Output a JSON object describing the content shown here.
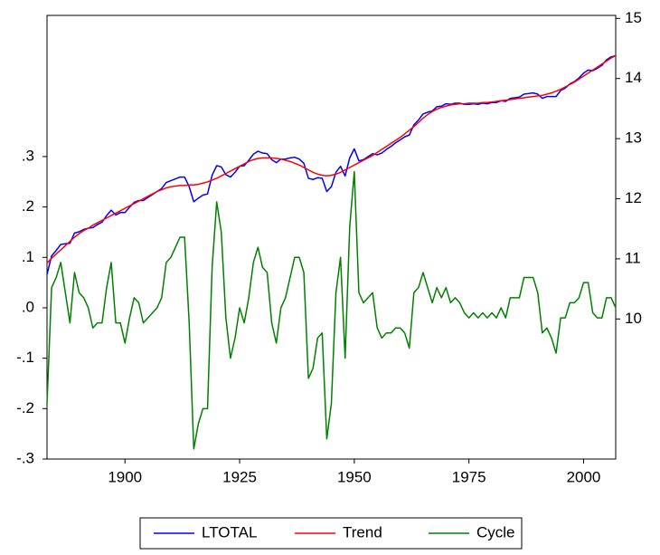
{
  "chart_data": {
    "type": "line",
    "x": [
      1883,
      1884,
      1885,
      1886,
      1887,
      1888,
      1889,
      1890,
      1891,
      1892,
      1893,
      1894,
      1895,
      1896,
      1897,
      1898,
      1899,
      1900,
      1901,
      1902,
      1903,
      1904,
      1905,
      1906,
      1907,
      1908,
      1909,
      1910,
      1911,
      1912,
      1913,
      1914,
      1915,
      1916,
      1917,
      1918,
      1919,
      1920,
      1921,
      1922,
      1923,
      1924,
      1925,
      1926,
      1927,
      1928,
      1929,
      1930,
      1931,
      1932,
      1933,
      1934,
      1935,
      1936,
      1937,
      1938,
      1939,
      1940,
      1941,
      1942,
      1943,
      1944,
      1945,
      1946,
      1947,
      1948,
      1949,
      1950,
      1951,
      1952,
      1953,
      1954,
      1955,
      1956,
      1957,
      1958,
      1959,
      1960,
      1961,
      1962,
      1963,
      1964,
      1965,
      1966,
      1967,
      1968,
      1969,
      1970,
      1971,
      1972,
      1973,
      1974,
      1975,
      1976,
      1977,
      1978,
      1979,
      1980,
      1981,
      1982,
      1983,
      1984,
      1985,
      1986,
      1987,
      1988,
      1989,
      1990,
      1991,
      1992,
      1993,
      1994,
      1995,
      1996,
      1997,
      1998,
      1999,
      2000,
      2001,
      2002,
      2003,
      2004,
      2005,
      2006,
      2007
    ],
    "series": [
      {
        "name": "LTOTAL",
        "color": "#0000ff",
        "axis": "y2",
        "values": [
          10.74,
          11.05,
          11.14,
          11.24,
          11.25,
          11.26,
          11.43,
          11.45,
          11.49,
          11.51,
          11.52,
          11.57,
          11.61,
          11.72,
          11.81,
          11.73,
          11.77,
          11.77,
          11.86,
          11.94,
          11.97,
          11.97,
          12.02,
          12.07,
          12.12,
          12.17,
          12.27,
          12.3,
          12.33,
          12.36,
          12.36,
          12.2,
          11.95,
          12.01,
          12.06,
          12.08,
          12.39,
          12.55,
          12.53,
          12.4,
          12.36,
          12.44,
          12.54,
          12.55,
          12.64,
          12.74,
          12.79,
          12.76,
          12.75,
          12.65,
          12.6,
          12.66,
          12.66,
          12.68,
          12.69,
          12.66,
          12.59,
          12.34,
          12.32,
          12.35,
          12.34,
          12.12,
          12.2,
          12.44,
          12.54,
          12.38,
          12.68,
          12.83,
          12.63,
          12.65,
          12.7,
          12.75,
          12.73,
          12.76,
          12.82,
          12.87,
          12.93,
          12.98,
          13.03,
          13.06,
          13.23,
          13.31,
          13.41,
          13.44,
          13.46,
          13.53,
          13.54,
          13.58,
          13.57,
          13.59,
          13.59,
          13.57,
          13.57,
          13.58,
          13.57,
          13.59,
          13.58,
          13.6,
          13.6,
          13.63,
          13.62,
          13.67,
          13.68,
          13.69,
          13.74,
          13.75,
          13.76,
          13.74,
          13.67,
          13.7,
          13.7,
          13.7,
          13.8,
          13.84,
          13.91,
          13.95,
          14.01,
          14.09,
          14.14,
          14.13,
          14.17,
          14.22,
          14.31,
          14.36,
          14.38
        ]
      },
      {
        "name": "Trend",
        "color": "#ff0000",
        "axis": "y2",
        "values": [
          10.93,
          11.01,
          11.08,
          11.15,
          11.22,
          11.29,
          11.36,
          11.42,
          11.47,
          11.51,
          11.56,
          11.6,
          11.64,
          11.68,
          11.72,
          11.76,
          11.8,
          11.84,
          11.88,
          11.92,
          11.96,
          12.0,
          12.04,
          12.08,
          12.12,
          12.15,
          12.18,
          12.2,
          12.21,
          12.22,
          12.22,
          12.23,
          12.23,
          12.24,
          12.26,
          12.28,
          12.31,
          12.34,
          12.38,
          12.42,
          12.46,
          12.5,
          12.54,
          12.58,
          12.62,
          12.65,
          12.67,
          12.68,
          12.68,
          12.68,
          12.67,
          12.66,
          12.64,
          12.62,
          12.59,
          12.56,
          12.52,
          12.48,
          12.44,
          12.41,
          12.39,
          12.38,
          12.39,
          12.41,
          12.44,
          12.48,
          12.52,
          12.56,
          12.6,
          12.64,
          12.68,
          12.72,
          12.77,
          12.82,
          12.87,
          12.92,
          12.97,
          13.02,
          13.08,
          13.14,
          13.2,
          13.27,
          13.34,
          13.4,
          13.45,
          13.49,
          13.52,
          13.54,
          13.56,
          13.57,
          13.58,
          13.58,
          13.59,
          13.59,
          13.59,
          13.6,
          13.6,
          13.61,
          13.62,
          13.63,
          13.64,
          13.65,
          13.66,
          13.67,
          13.68,
          13.69,
          13.7,
          13.71,
          13.72,
          13.74,
          13.76,
          13.79,
          13.82,
          13.86,
          13.9,
          13.94,
          13.99,
          14.04,
          14.09,
          14.14,
          14.19,
          14.24,
          14.29,
          14.34,
          14.38
        ]
      },
      {
        "name": "Cycle",
        "color": "#008000",
        "axis": "y",
        "values": [
          -0.19,
          0.04,
          0.06,
          0.09,
          0.03,
          -0.03,
          0.07,
          0.03,
          0.02,
          0.0,
          -0.04,
          -0.03,
          -0.03,
          0.04,
          0.09,
          -0.03,
          -0.03,
          -0.07,
          -0.02,
          0.02,
          0.01,
          -0.03,
          -0.02,
          -0.01,
          0.0,
          0.02,
          0.09,
          0.1,
          0.12,
          0.14,
          0.14,
          -0.03,
          -0.28,
          -0.23,
          -0.2,
          -0.2,
          0.08,
          0.21,
          0.15,
          -0.02,
          -0.1,
          -0.06,
          0.0,
          -0.03,
          0.02,
          0.09,
          0.12,
          0.08,
          0.07,
          -0.03,
          -0.07,
          0.0,
          0.02,
          0.06,
          0.1,
          0.1,
          0.07,
          -0.14,
          -0.12,
          -0.06,
          -0.05,
          -0.26,
          -0.19,
          0.03,
          0.1,
          -0.1,
          0.16,
          0.27,
          0.03,
          0.01,
          0.02,
          0.03,
          -0.04,
          -0.06,
          -0.05,
          -0.05,
          -0.04,
          -0.04,
          -0.05,
          -0.08,
          0.03,
          0.04,
          0.07,
          0.04,
          0.01,
          0.04,
          0.02,
          0.04,
          0.01,
          0.02,
          0.01,
          -0.01,
          -0.02,
          -0.01,
          -0.02,
          -0.01,
          -0.02,
          -0.01,
          -0.02,
          0.0,
          -0.02,
          0.02,
          0.02,
          0.02,
          0.06,
          0.06,
          0.06,
          0.03,
          -0.05,
          -0.04,
          -0.06,
          -0.09,
          -0.02,
          -0.02,
          0.01,
          0.01,
          0.02,
          0.05,
          0.05,
          -0.01,
          -0.02,
          -0.02,
          0.02,
          0.02,
          0.0
        ]
      }
    ],
    "xlim": [
      1883,
      2007
    ],
    "xticks": [
      1900,
      1925,
      1950,
      1975,
      2000
    ],
    "ylim": [
      -0.3,
      0.58
    ],
    "yticks": [
      {
        "value": -0.3,
        "label": "-.3"
      },
      {
        "value": -0.2,
        "label": "-.2"
      },
      {
        "value": -0.1,
        "label": "-.1"
      },
      {
        "value": 0,
        "label": ".0"
      },
      {
        "value": 0.1,
        "label": ".1"
      },
      {
        "value": 0.2,
        "label": ".2"
      },
      {
        "value": 0.3,
        "label": ".3"
      }
    ],
    "y2lim": [
      7.67,
      15.05
    ],
    "y2ticks": [
      10,
      11,
      12,
      13,
      14,
      15
    ],
    "grid": false,
    "legend": "bottom"
  }
}
